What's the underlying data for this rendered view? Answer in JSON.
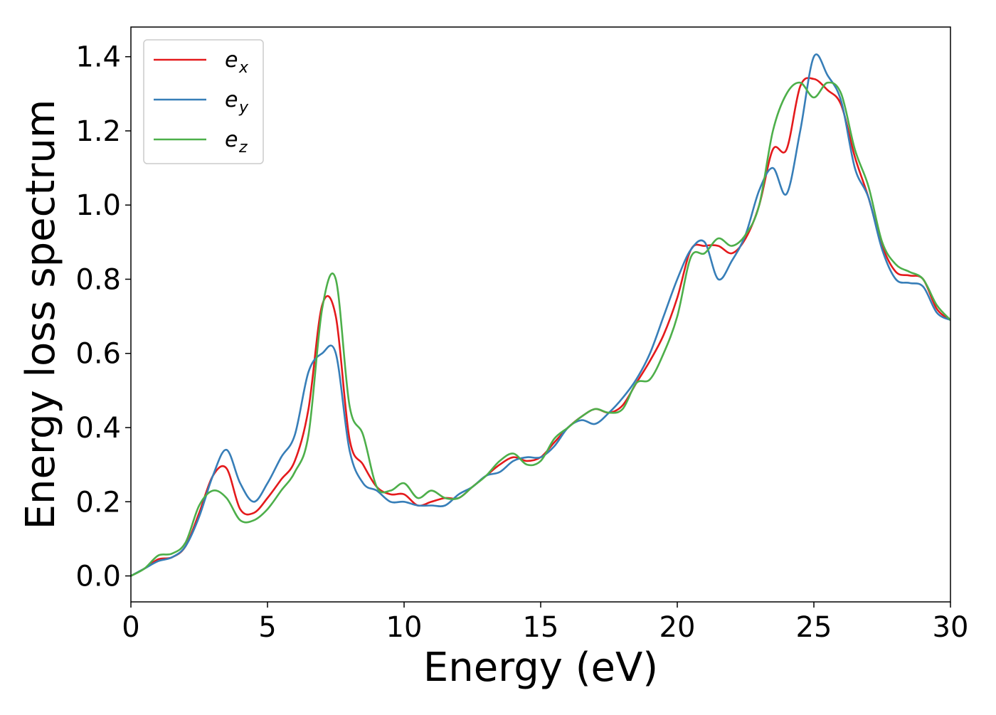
{
  "chart_data": {
    "type": "line",
    "xlabel": "Energy (eV)",
    "ylabel": "Energy loss spectrum",
    "xlim": [
      0,
      30
    ],
    "ylim": [
      -0.07,
      1.48
    ],
    "xticks": [
      "0",
      "5",
      "10",
      "15",
      "20",
      "25",
      "30"
    ],
    "yticks": [
      "0.0",
      "0.2",
      "0.4",
      "0.6",
      "0.8",
      "1.0",
      "1.2",
      "1.4"
    ],
    "grid": false,
    "legend_position": "top-left",
    "x": [
      0,
      0.5,
      1,
      1.5,
      2,
      2.5,
      3,
      3.5,
      4,
      4.5,
      5,
      5.5,
      6,
      6.5,
      7,
      7.5,
      8,
      8.5,
      9,
      9.5,
      10,
      10.5,
      11,
      11.5,
      12,
      12.5,
      13,
      13.5,
      14,
      14.5,
      15,
      15.5,
      16,
      16.5,
      17,
      17.5,
      18,
      18.5,
      19,
      19.5,
      20,
      20.5,
      21,
      21.5,
      22,
      22.5,
      23,
      23.5,
      24,
      24.5,
      25,
      25.5,
      26,
      26.5,
      27,
      27.5,
      28,
      28.5,
      29,
      29.5,
      30
    ],
    "series": [
      {
        "name": "e",
        "subscript": "x",
        "color": "#e41a1c",
        "values": [
          0.0,
          0.02,
          0.045,
          0.05,
          0.08,
          0.17,
          0.27,
          0.29,
          0.18,
          0.17,
          0.21,
          0.26,
          0.31,
          0.45,
          0.73,
          0.7,
          0.37,
          0.3,
          0.24,
          0.22,
          0.22,
          0.19,
          0.2,
          0.21,
          0.21,
          0.24,
          0.27,
          0.3,
          0.32,
          0.31,
          0.32,
          0.36,
          0.4,
          0.43,
          0.45,
          0.44,
          0.46,
          0.52,
          0.58,
          0.65,
          0.75,
          0.88,
          0.89,
          0.89,
          0.87,
          0.91,
          1.0,
          1.15,
          1.15,
          1.32,
          1.34,
          1.31,
          1.27,
          1.13,
          1.02,
          0.89,
          0.82,
          0.81,
          0.8,
          0.72,
          0.69
        ]
      },
      {
        "name": "e",
        "subscript": "y",
        "color": "#377eb8",
        "values": [
          0.0,
          0.02,
          0.04,
          0.05,
          0.08,
          0.16,
          0.27,
          0.34,
          0.25,
          0.2,
          0.25,
          0.32,
          0.38,
          0.55,
          0.6,
          0.6,
          0.34,
          0.25,
          0.23,
          0.2,
          0.2,
          0.19,
          0.19,
          0.19,
          0.22,
          0.24,
          0.27,
          0.28,
          0.31,
          0.32,
          0.32,
          0.35,
          0.4,
          0.42,
          0.41,
          0.44,
          0.48,
          0.53,
          0.6,
          0.7,
          0.8,
          0.88,
          0.9,
          0.8,
          0.85,
          0.92,
          1.04,
          1.1,
          1.03,
          1.2,
          1.4,
          1.35,
          1.28,
          1.1,
          1.02,
          0.88,
          0.8,
          0.79,
          0.78,
          0.71,
          0.69
        ]
      },
      {
        "name": "e",
        "subscript": "z",
        "color": "#4daf4a",
        "values": [
          0.0,
          0.02,
          0.055,
          0.06,
          0.09,
          0.19,
          0.23,
          0.21,
          0.15,
          0.15,
          0.18,
          0.23,
          0.28,
          0.38,
          0.72,
          0.8,
          0.46,
          0.38,
          0.24,
          0.23,
          0.25,
          0.21,
          0.23,
          0.21,
          0.21,
          0.24,
          0.27,
          0.31,
          0.33,
          0.3,
          0.31,
          0.37,
          0.4,
          0.43,
          0.45,
          0.44,
          0.45,
          0.52,
          0.53,
          0.6,
          0.7,
          0.86,
          0.87,
          0.91,
          0.89,
          0.92,
          1.0,
          1.2,
          1.3,
          1.33,
          1.29,
          1.33,
          1.3,
          1.15,
          1.05,
          0.9,
          0.84,
          0.82,
          0.8,
          0.73,
          0.69
        ]
      }
    ]
  }
}
